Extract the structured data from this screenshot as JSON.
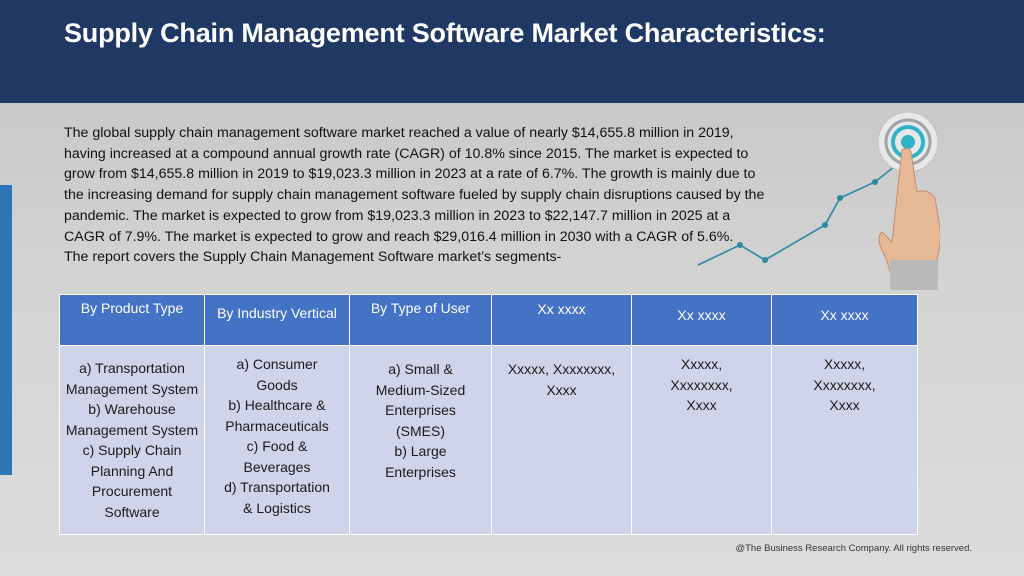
{
  "title": "Supply Chain Management Software Market Characteristics:",
  "intro_lines": [
    "The global supply chain management software market reached a value of nearly $14,655.8 million in 2019,",
    "having increased at a compound annual growth rate (CAGR) of 10.8% since 2015.  The market is expected to",
    "grow from $14,655.8 million in 2019 to $19,023.3 million in 2023 at a rate of 6.7%. The growth is mainly due to",
    "the increasing demand for supply chain management software fueled by supply chain disruptions caused by the",
    "pandemic. The market is expected to grow from $19,023.3 million in 2023 to $22,147.7 million in 2025 at a",
    "CAGR of 7.9%.  The market is expected to grow and reach $29,016.4 million in 2030 with a CAGR of 5.6%."
  ],
  "segments_intro": "The report covers the Supply Chain Management Software market’s segments-",
  "table": {
    "headers": [
      "By Product Type",
      "By Industry Vertical",
      "By Type of User",
      "Xx xxxx",
      "Xx xxxx",
      "Xx xxxx"
    ],
    "columns": [
      [
        "a) Transportation",
        "Management System",
        "b) Warehouse",
        "Management System",
        "c) Supply Chain",
        "Planning And",
        "Procurement",
        "Software"
      ],
      [
        "a) Consumer",
        "Goods",
        "b) Healthcare &",
        "Pharmaceuticals",
        "c) Food &",
        "Beverages",
        "d) Transportation",
        "& Logistics"
      ],
      [
        "a) Small &",
        "Medium-Sized",
        "Enterprises",
        "(SMES)",
        "b) Large",
        "Enterprises"
      ],
      [
        "Xxxxx, Xxxxxxxx,",
        "Xxxx"
      ],
      [
        "Xxxxx,",
        "Xxxxxxxx,",
        "Xxxx"
      ],
      [
        "Xxxxx,",
        "Xxxxxxxx,",
        "Xxxx"
      ]
    ]
  },
  "footer": "@The Business Research Company. All rights reserved.",
  "colors": {
    "header_bg": "#1f3864",
    "table_header_bg": "#4472c4",
    "table_cell_bg": "#d0d4ea",
    "accent": "#2e75b6"
  },
  "icons": [
    "target-icon",
    "pointing-hand-icon",
    "trend-line-icon"
  ]
}
